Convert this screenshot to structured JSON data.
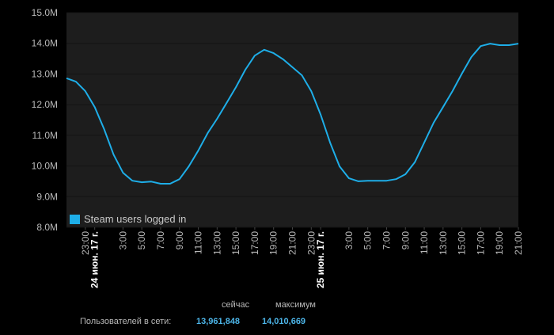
{
  "chart_data": {
    "type": "line",
    "x": [
      -3,
      -2,
      -1,
      0,
      1,
      2,
      3,
      4,
      5,
      6,
      7,
      8,
      9,
      10,
      11,
      12,
      13,
      14,
      15,
      16,
      17,
      18,
      19,
      20,
      21,
      22,
      23,
      24,
      25,
      26,
      27,
      28,
      29,
      30,
      31,
      32,
      33,
      34,
      35,
      36,
      37,
      38,
      39,
      40,
      41,
      42,
      43,
      44,
      45
    ],
    "series": [
      {
        "name": "Steam users logged in",
        "color": "#1eaee8",
        "values": [
          12860000,
          12750000,
          12440000,
          11920000,
          11200000,
          10370000,
          9780000,
          9520000,
          9470000,
          9490000,
          9420000,
          9420000,
          9570000,
          9990000,
          10500000,
          11070000,
          11540000,
          12050000,
          12570000,
          13140000,
          13600000,
          13790000,
          13680000,
          13480000,
          13220000,
          12960000,
          12440000,
          11670000,
          10760000,
          9990000,
          9600000,
          9500000,
          9520000,
          9520000,
          9520000,
          9570000,
          9730000,
          10120000,
          10760000,
          11410000,
          11920000,
          12440000,
          13010000,
          13550000,
          13910000,
          13990000,
          13940000,
          13940000,
          13990000
        ]
      }
    ],
    "xlim": [
      -3,
      45
    ],
    "xticks": [
      {
        "value": -1,
        "label": "23:00"
      },
      {
        "value": 0,
        "label": "24 июн. 17 г."
      },
      {
        "value": 3,
        "label": "3:00"
      },
      {
        "value": 5,
        "label": "5:00"
      },
      {
        "value": 7,
        "label": "7:00"
      },
      {
        "value": 9,
        "label": "9:00"
      },
      {
        "value": 11,
        "label": "11:00"
      },
      {
        "value": 13,
        "label": "13:00"
      },
      {
        "value": 15,
        "label": "15:00"
      },
      {
        "value": 17,
        "label": "17:00"
      },
      {
        "value": 19,
        "label": "19:00"
      },
      {
        "value": 21,
        "label": "21:00"
      },
      {
        "value": 23,
        "label": "23:00"
      },
      {
        "value": 24,
        "label": "25 июн. 17 г."
      },
      {
        "value": 27,
        "label": "3:00"
      },
      {
        "value": 29,
        "label": "5:00"
      },
      {
        "value": 31,
        "label": "7:00"
      },
      {
        "value": 33,
        "label": "9:00"
      },
      {
        "value": 35,
        "label": "11:00"
      },
      {
        "value": 37,
        "label": "13:00"
      },
      {
        "value": 39,
        "label": "15:00"
      },
      {
        "value": 41,
        "label": "17:00"
      },
      {
        "value": 43,
        "label": "19:00"
      },
      {
        "value": 45,
        "label": "21:00"
      }
    ],
    "ylim": [
      8000000,
      15000000
    ],
    "yticks": [
      {
        "value": 8000000,
        "label": "8.0M"
      },
      {
        "value": 9000000,
        "label": "9.0M"
      },
      {
        "value": 10000000,
        "label": "10.0M"
      },
      {
        "value": 11000000,
        "label": "11.0M"
      },
      {
        "value": 12000000,
        "label": "12.0M"
      },
      {
        "value": 13000000,
        "label": "13.0M"
      },
      {
        "value": 14000000,
        "label": "14.0M"
      },
      {
        "value": 15000000,
        "label": "15.0M"
      }
    ],
    "grid": true,
    "legend": "lower left"
  },
  "summary": {
    "now_label": "сейчас",
    "max_label": "максимум",
    "users_label": "Пользователей в сети:",
    "now_value": "13,961,848",
    "max_value": "14,010,669"
  }
}
